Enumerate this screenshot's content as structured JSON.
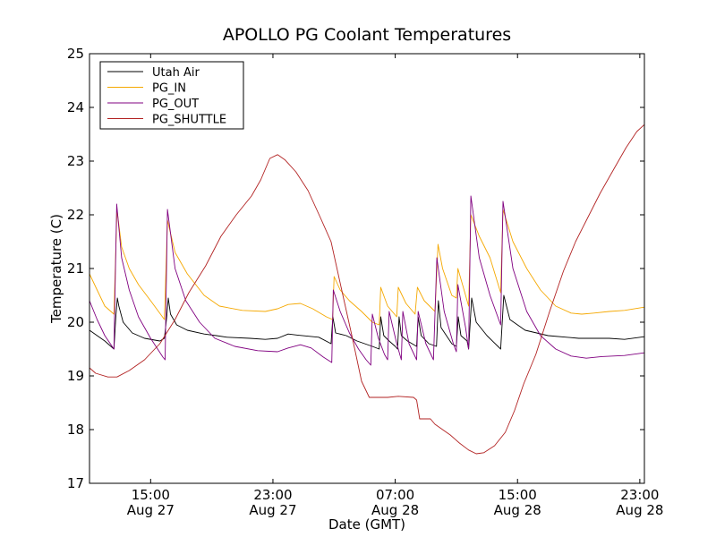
{
  "chart_data": {
    "type": "line",
    "title": "APOLLO PG Coolant Temperatures",
    "xlabel": "Date (GMT)",
    "ylabel": "Temperature (C)",
    "x_unit": "hours since Aug 27 11:00 GMT",
    "xlim": [
      0,
      36.3
    ],
    "ylim": [
      17,
      25
    ],
    "yticks": [
      17,
      18,
      19,
      20,
      21,
      22,
      23,
      24,
      25
    ],
    "xticks": [
      {
        "x": 4,
        "line1": "15:00",
        "line2": "Aug 27"
      },
      {
        "x": 12,
        "line1": "23:00",
        "line2": "Aug 27"
      },
      {
        "x": 20,
        "line1": "07:00",
        "line2": "Aug 28"
      },
      {
        "x": 28,
        "line1": "15:00",
        "line2": "Aug 28"
      },
      {
        "x": 36,
        "line1": "23:00",
        "line2": "Aug 28"
      }
    ],
    "legend_position": "top-left",
    "series": [
      {
        "name": "Utah Air",
        "color": "#000000",
        "points": [
          [
            0,
            19.85
          ],
          [
            1.0,
            19.65
          ],
          [
            1.6,
            19.5
          ],
          [
            1.72,
            20.1
          ],
          [
            1.82,
            20.45
          ],
          [
            1.92,
            20.3
          ],
          [
            2.2,
            20.0
          ],
          [
            2.8,
            19.8
          ],
          [
            3.6,
            19.7
          ],
          [
            4.6,
            19.65
          ],
          [
            4.9,
            19.7
          ],
          [
            5.05,
            20.1
          ],
          [
            5.15,
            20.45
          ],
          [
            5.3,
            20.15
          ],
          [
            5.7,
            19.95
          ],
          [
            6.4,
            19.85
          ],
          [
            7.5,
            19.78
          ],
          [
            8.3,
            19.75
          ],
          [
            9,
            19.72
          ],
          [
            10.5,
            19.7
          ],
          [
            11.5,
            19.68
          ],
          [
            12.3,
            19.7
          ],
          [
            13,
            19.78
          ],
          [
            13.6,
            19.76
          ],
          [
            15,
            19.72
          ],
          [
            15.8,
            19.6
          ],
          [
            15.92,
            20.1
          ],
          [
            16.1,
            19.8
          ],
          [
            16.8,
            19.75
          ],
          [
            17.5,
            19.65
          ],
          [
            18,
            19.6
          ],
          [
            18.5,
            19.55
          ],
          [
            18.95,
            19.5
          ],
          [
            19.05,
            20.1
          ],
          [
            19.25,
            19.75
          ],
          [
            19.6,
            19.65
          ],
          [
            20,
            19.55
          ],
          [
            20.15,
            19.5
          ],
          [
            20.25,
            20.1
          ],
          [
            20.4,
            19.75
          ],
          [
            20.8,
            19.65
          ],
          [
            21.4,
            19.55
          ],
          [
            21.5,
            20.1
          ],
          [
            21.7,
            19.75
          ],
          [
            22.2,
            19.6
          ],
          [
            22.7,
            19.55
          ],
          [
            22.82,
            20.4
          ],
          [
            23.0,
            19.9
          ],
          [
            23.7,
            19.6
          ],
          [
            24.0,
            19.55
          ],
          [
            24.12,
            20.1
          ],
          [
            24.3,
            19.75
          ],
          [
            24.7,
            19.65
          ],
          [
            24.8,
            19.5
          ],
          [
            25.0,
            20.45
          ],
          [
            25.3,
            20.0
          ],
          [
            26,
            19.75
          ],
          [
            26.9,
            19.5
          ],
          [
            27.1,
            20.5
          ],
          [
            27.5,
            20.05
          ],
          [
            28.5,
            19.85
          ],
          [
            30,
            19.75
          ],
          [
            32,
            19.7
          ],
          [
            34,
            19.7
          ],
          [
            35,
            19.68
          ],
          [
            36.3,
            19.73
          ]
        ]
      },
      {
        "name": "PG_IN",
        "color": "#f5a800",
        "points": [
          [
            0,
            20.9
          ],
          [
            0.5,
            20.6
          ],
          [
            1.0,
            20.3
          ],
          [
            1.6,
            20.15
          ],
          [
            1.8,
            22.1
          ],
          [
            2.1,
            21.4
          ],
          [
            2.6,
            21.0
          ],
          [
            3.2,
            20.7
          ],
          [
            4.0,
            20.4
          ],
          [
            4.9,
            20.05
          ],
          [
            5.1,
            21.9
          ],
          [
            5.6,
            21.3
          ],
          [
            6.4,
            20.9
          ],
          [
            7.5,
            20.5
          ],
          [
            8.5,
            20.3
          ],
          [
            10,
            20.22
          ],
          [
            11.5,
            20.2
          ],
          [
            12.3,
            20.25
          ],
          [
            13,
            20.33
          ],
          [
            13.8,
            20.35
          ],
          [
            14.6,
            20.25
          ],
          [
            15.5,
            20.1
          ],
          [
            15.9,
            20.05
          ],
          [
            16.0,
            20.85
          ],
          [
            16.4,
            20.6
          ],
          [
            17,
            20.4
          ],
          [
            17.8,
            20.2
          ],
          [
            18.5,
            20.0
          ],
          [
            18.95,
            19.95
          ],
          [
            19.05,
            20.65
          ],
          [
            19.5,
            20.3
          ],
          [
            20.1,
            20.1
          ],
          [
            20.2,
            20.65
          ],
          [
            20.7,
            20.35
          ],
          [
            21.3,
            20.15
          ],
          [
            21.45,
            20.65
          ],
          [
            21.9,
            20.4
          ],
          [
            22.6,
            20.2
          ],
          [
            22.8,
            21.45
          ],
          [
            23.1,
            21.0
          ],
          [
            23.7,
            20.5
          ],
          [
            24.0,
            20.45
          ],
          [
            24.1,
            21.0
          ],
          [
            24.5,
            20.6
          ],
          [
            24.8,
            20.3
          ],
          [
            24.95,
            22.0
          ],
          [
            25.5,
            21.6
          ],
          [
            26.2,
            21.2
          ],
          [
            26.9,
            20.55
          ],
          [
            27.05,
            22.1
          ],
          [
            27.7,
            21.5
          ],
          [
            28.6,
            21.0
          ],
          [
            29.5,
            20.6
          ],
          [
            30.5,
            20.3
          ],
          [
            31.5,
            20.17
          ],
          [
            32.2,
            20.15
          ],
          [
            33,
            20.17
          ],
          [
            34,
            20.2
          ],
          [
            35,
            20.22
          ],
          [
            36.3,
            20.28
          ]
        ]
      },
      {
        "name": "PG_OUT",
        "color": "#800080",
        "points": [
          [
            0,
            20.4
          ],
          [
            0.5,
            20.05
          ],
          [
            1.0,
            19.75
          ],
          [
            1.6,
            19.5
          ],
          [
            1.78,
            22.2
          ],
          [
            2.1,
            21.2
          ],
          [
            2.6,
            20.6
          ],
          [
            3.2,
            20.1
          ],
          [
            4.0,
            19.7
          ],
          [
            4.8,
            19.35
          ],
          [
            4.95,
            19.3
          ],
          [
            5.1,
            22.1
          ],
          [
            5.6,
            21.0
          ],
          [
            6.3,
            20.4
          ],
          [
            7.2,
            20.0
          ],
          [
            8.2,
            19.7
          ],
          [
            9.5,
            19.55
          ],
          [
            11,
            19.47
          ],
          [
            12.3,
            19.45
          ],
          [
            13,
            19.52
          ],
          [
            13.8,
            19.58
          ],
          [
            14.5,
            19.52
          ],
          [
            15.3,
            19.35
          ],
          [
            15.85,
            19.25
          ],
          [
            15.95,
            20.6
          ],
          [
            16.4,
            20.2
          ],
          [
            17,
            19.8
          ],
          [
            17.6,
            19.5
          ],
          [
            18.1,
            19.3
          ],
          [
            18.4,
            19.2
          ],
          [
            18.5,
            20.15
          ],
          [
            18.9,
            19.7
          ],
          [
            19.3,
            19.4
          ],
          [
            19.5,
            19.3
          ],
          [
            19.6,
            20.2
          ],
          [
            20.1,
            19.6
          ],
          [
            20.4,
            19.3
          ],
          [
            20.5,
            20.2
          ],
          [
            20.9,
            19.6
          ],
          [
            21.4,
            19.3
          ],
          [
            21.5,
            20.2
          ],
          [
            22.0,
            19.6
          ],
          [
            22.5,
            19.3
          ],
          [
            22.72,
            21.2
          ],
          [
            23.2,
            20.2
          ],
          [
            23.8,
            19.6
          ],
          [
            24.0,
            19.45
          ],
          [
            24.1,
            20.7
          ],
          [
            24.6,
            19.9
          ],
          [
            24.8,
            19.5
          ],
          [
            24.95,
            22.35
          ],
          [
            25.5,
            21.2
          ],
          [
            26.2,
            20.5
          ],
          [
            26.9,
            19.95
          ],
          [
            27.05,
            22.25
          ],
          [
            27.7,
            21.0
          ],
          [
            28.6,
            20.2
          ],
          [
            29.5,
            19.75
          ],
          [
            30.5,
            19.5
          ],
          [
            31.5,
            19.37
          ],
          [
            32.5,
            19.33
          ],
          [
            33.5,
            19.36
          ],
          [
            35,
            19.38
          ],
          [
            36.3,
            19.43
          ]
        ]
      },
      {
        "name": "PG_SHUTTLE",
        "color": "#b22222",
        "points": [
          [
            0,
            19.15
          ],
          [
            0.4,
            19.05
          ],
          [
            1.2,
            18.98
          ],
          [
            1.8,
            18.98
          ],
          [
            2.6,
            19.1
          ],
          [
            3.6,
            19.3
          ],
          [
            4.6,
            19.6
          ],
          [
            5.6,
            20.05
          ],
          [
            6.5,
            20.55
          ],
          [
            7.6,
            21.05
          ],
          [
            8.6,
            21.6
          ],
          [
            9.6,
            22.0
          ],
          [
            10.6,
            22.35
          ],
          [
            11.2,
            22.65
          ],
          [
            11.8,
            23.05
          ],
          [
            12.3,
            23.12
          ],
          [
            12.8,
            23.02
          ],
          [
            13.5,
            22.8
          ],
          [
            14.3,
            22.45
          ],
          [
            15.1,
            21.95
          ],
          [
            15.8,
            21.5
          ],
          [
            16.5,
            20.6
          ],
          [
            17.2,
            19.7
          ],
          [
            17.8,
            18.9
          ],
          [
            18.3,
            18.6
          ],
          [
            19.5,
            18.6
          ],
          [
            20.2,
            18.62
          ],
          [
            21.2,
            18.6
          ],
          [
            21.4,
            18.55
          ],
          [
            21.6,
            18.2
          ],
          [
            22.3,
            18.2
          ],
          [
            22.6,
            18.1
          ],
          [
            23.1,
            18.0
          ],
          [
            23.6,
            17.9
          ],
          [
            24.2,
            17.75
          ],
          [
            24.8,
            17.62
          ],
          [
            25.3,
            17.55
          ],
          [
            25.8,
            17.57
          ],
          [
            26.5,
            17.7
          ],
          [
            27.2,
            17.95
          ],
          [
            27.8,
            18.35
          ],
          [
            28.4,
            18.85
          ],
          [
            29.2,
            19.4
          ],
          [
            30.1,
            20.2
          ],
          [
            31.0,
            20.95
          ],
          [
            31.8,
            21.5
          ],
          [
            32.6,
            21.95
          ],
          [
            33.4,
            22.4
          ],
          [
            34.3,
            22.85
          ],
          [
            35.1,
            23.25
          ],
          [
            35.8,
            23.55
          ],
          [
            36.3,
            23.68
          ]
        ]
      }
    ]
  }
}
